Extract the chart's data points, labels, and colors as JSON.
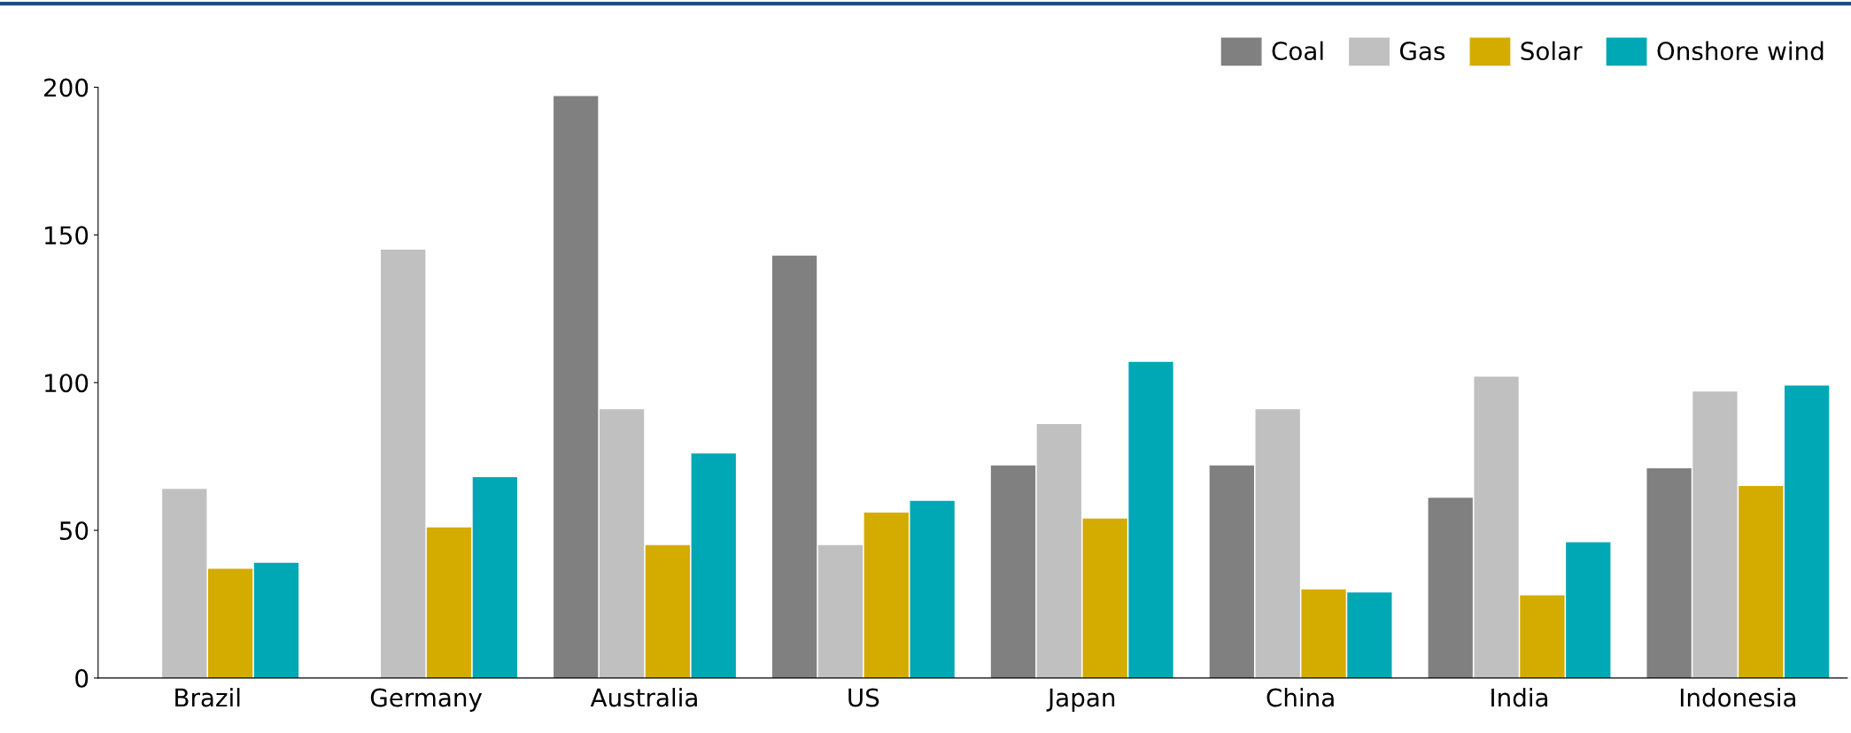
{
  "chart_data": {
    "type": "bar",
    "categories": [
      "Brazil",
      "Germany",
      "Australia",
      "US",
      "Japan",
      "China",
      "India",
      "Indonesia"
    ],
    "series": [
      {
        "name": "Coal",
        "color": "#808080",
        "values": [
          null,
          null,
          197,
          143,
          72,
          72,
          61,
          71
        ]
      },
      {
        "name": "Gas",
        "color": "#c0c0c0",
        "values": [
          64,
          145,
          91,
          45,
          86,
          91,
          102,
          97
        ]
      },
      {
        "name": "Solar",
        "color": "#d4ac00",
        "values": [
          37,
          51,
          45,
          56,
          54,
          30,
          28,
          65
        ]
      },
      {
        "name": "Onshore wind",
        "color": "#00a8b5",
        "values": [
          39,
          68,
          76,
          60,
          107,
          29,
          46,
          99
        ]
      }
    ],
    "ylim": [
      0,
      200
    ],
    "yticks": [
      0,
      50,
      100,
      150,
      200
    ],
    "grid": false,
    "legend": "top right"
  }
}
